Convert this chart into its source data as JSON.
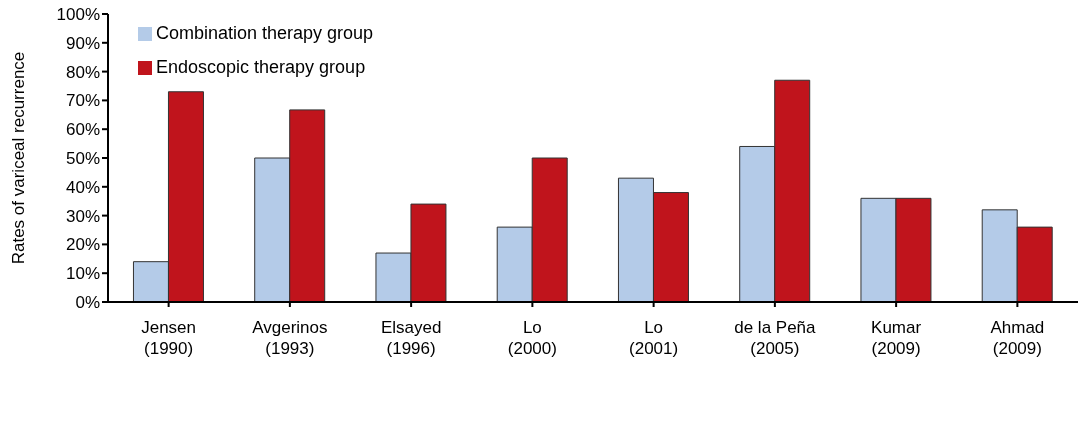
{
  "chart_data": {
    "type": "bar",
    "ylabel": "Rates of variceal recurrence",
    "categories": [
      "Jensen\n(1990)",
      "Avgerinos\n(1993)",
      "Elsayed\n(1996)",
      "Lo\n(2000)",
      "Lo\n(2001)",
      "de la Peña\n(2005)",
      "Kumar\n(2009)",
      "Ahmad\n(2009)"
    ],
    "series": [
      {
        "name": "Combination therapy group",
        "color": "#b4cbe8",
        "values": [
          14,
          50,
          17,
          26,
          43,
          54,
          36,
          32
        ]
      },
      {
        "name": "Endoscopic therapy group",
        "color": "#c0141c",
        "values": [
          73,
          66.7,
          34,
          50,
          38,
          77,
          36,
          26
        ]
      }
    ],
    "ylim": [
      0,
      100
    ],
    "yticks": [
      {
        "value": 0,
        "label": "0%"
      },
      {
        "value": 10,
        "label": "10%"
      },
      {
        "value": 20,
        "label": "20%"
      },
      {
        "value": 30,
        "label": "30%"
      },
      {
        "value": 40,
        "label": "40%"
      },
      {
        "value": 50,
        "label": "50%"
      },
      {
        "value": 60,
        "label": "60%"
      },
      {
        "value": 70,
        "label": "70%"
      },
      {
        "value": 80,
        "label": "80%"
      },
      {
        "value": 90,
        "label": "90%"
      },
      {
        "value": 100,
        "label": "100%"
      }
    ],
    "grid": false,
    "legend": "top left"
  }
}
